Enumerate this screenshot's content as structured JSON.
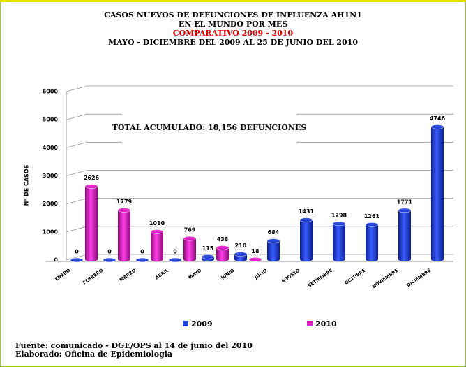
{
  "chart_data": {
    "type": "bar",
    "title": [
      "CASOS NUEVOS DE DEFUNCIONES DE INFLUENZA AH1N1",
      "EN EL MUNDO POR MES"
    ],
    "subtitle": "COMPARATIVO 2009 - 2010",
    "period": "MAYO - DICIEMBRE DEL 2009 AL 25 DE JUNIO DEL 2010",
    "annotation": "TOTAL ACUMULADO: 18,156 DEFUNCIONES",
    "ylabel": "N° DE CASOS",
    "categories": [
      "ENERO",
      "FEBRERO",
      "MARZO",
      "ABRIL",
      "MAYO",
      "JUNIO",
      "JULIO",
      "AGOSTO",
      "SETIEMBRE",
      "OCTUBRE",
      "NOVIEMBRE",
      "DICIEMBRE"
    ],
    "series": [
      {
        "name": "2009",
        "color": "#1f3fd8",
        "values": [
          0,
          0,
          0,
          0,
          115,
          210,
          684,
          1431,
          1298,
          1261,
          1771,
          4746
        ]
      },
      {
        "name": "2010",
        "color": "#e01cc8",
        "values": [
          2626,
          1779,
          1010,
          769,
          438,
          18,
          null,
          null,
          null,
          null,
          null,
          null
        ]
      }
    ],
    "ylim": [
      0,
      6000
    ],
    "yticks": [
      0,
      1000,
      2000,
      3000,
      4000,
      5000,
      6000
    ],
    "grid": true,
    "notes": [
      "Fuente: comunicado - DGE/OPS  al 14 de junio del 2010",
      "Elaborado: Oficina de Epidemiologia"
    ]
  }
}
